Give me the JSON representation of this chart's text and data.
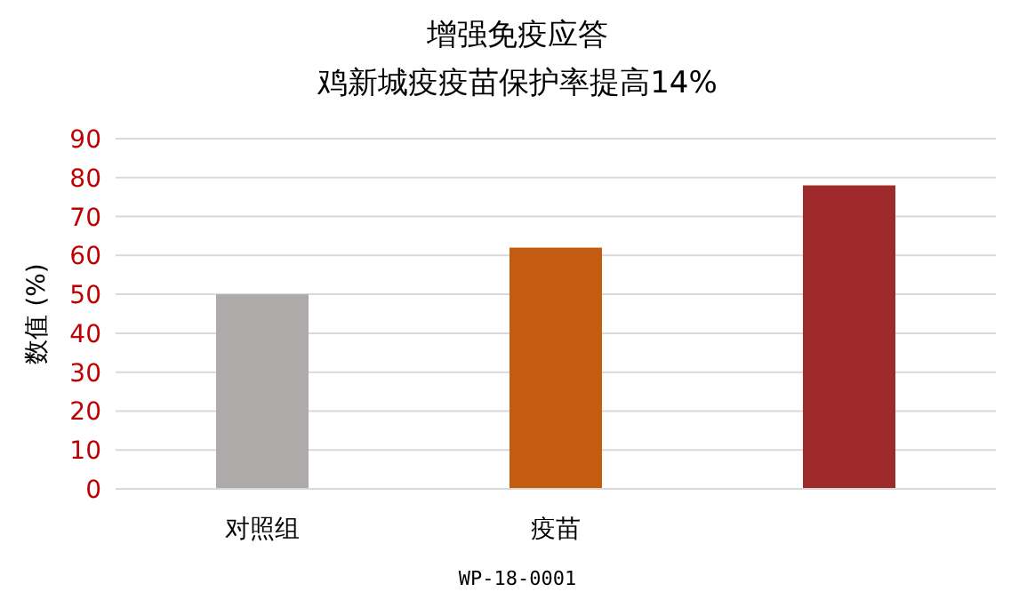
{
  "chart_data": {
    "type": "bar",
    "title": "增强免疫应答",
    "subtitle": "鸡新城疫疫苗保护率提高14%",
    "ylabel": "数值 (%)",
    "categories": [
      "对照组",
      "疫苗",
      null
    ],
    "values": [
      50,
      62,
      78
    ],
    "colors": [
      "#aeaaaa",
      "#c55a11",
      "#9e2a2b"
    ],
    "ylim": [
      0,
      90
    ],
    "yticks": [
      0,
      10,
      20,
      30,
      40,
      50,
      60,
      70,
      80,
      90
    ],
    "grid": "y",
    "annotations": [
      "WP-18-0001"
    ]
  }
}
